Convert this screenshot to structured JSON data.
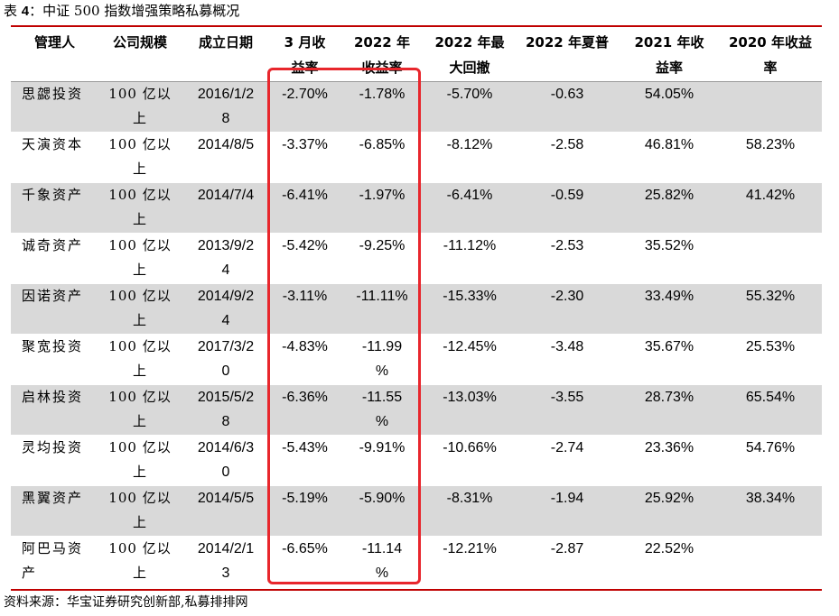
{
  "caption": {
    "prefix": "表",
    "number": "4",
    "text": "：中证 500 指数增强策略私募概况"
  },
  "columns": [
    [
      "管理人"
    ],
    [
      "公司规模"
    ],
    [
      "成立日期"
    ],
    [
      "3 月收",
      "益率"
    ],
    [
      "2022 年",
      "收益率"
    ],
    [
      "2022 年最",
      "大回撤"
    ],
    [
      "2022 年夏普"
    ],
    [
      "2021 年收",
      "益率"
    ],
    [
      "2020 年收益",
      "率"
    ]
  ],
  "rows": [
    {
      "manager": "思勰投资",
      "scale": [
        "100 亿以",
        "上"
      ],
      "date": [
        "2016/1/2",
        "8"
      ],
      "mar": "-2.70%",
      "ret2022": [
        "-1.78%"
      ],
      "dd2022": "-5.70%",
      "sharpe2022": "-0.63",
      "ret2021": "54.05%",
      "ret2020": ""
    },
    {
      "manager": "天演资本",
      "scale": [
        "100 亿以",
        "上"
      ],
      "date": [
        "2014/8/5"
      ],
      "mar": "-3.37%",
      "ret2022": [
        "-6.85%"
      ],
      "dd2022": "-8.12%",
      "sharpe2022": "-2.58",
      "ret2021": "46.81%",
      "ret2020": "58.23%"
    },
    {
      "manager": "千象资产",
      "scale": [
        "100 亿以",
        "上"
      ],
      "date": [
        "2014/7/4"
      ],
      "mar": "-6.41%",
      "ret2022": [
        "-1.97%"
      ],
      "dd2022": "-6.41%",
      "sharpe2022": "-0.59",
      "ret2021": "25.82%",
      "ret2020": "41.42%"
    },
    {
      "manager": "诚奇资产",
      "scale": [
        "100 亿以",
        "上"
      ],
      "date": [
        "2013/9/2",
        "4"
      ],
      "mar": "-5.42%",
      "ret2022": [
        "-9.25%"
      ],
      "dd2022": "-11.12%",
      "sharpe2022": "-2.53",
      "ret2021": "35.52%",
      "ret2020": ""
    },
    {
      "manager": "因诺资产",
      "scale": [
        "100 亿以",
        "上"
      ],
      "date": [
        "2014/9/2",
        "4"
      ],
      "mar": "-3.11%",
      "ret2022": [
        "-11.11%"
      ],
      "dd2022": "-15.33%",
      "sharpe2022": "-2.30",
      "ret2021": "33.49%",
      "ret2020": "55.32%"
    },
    {
      "manager": "聚宽投资",
      "scale": [
        "100 亿以",
        "上"
      ],
      "date": [
        "2017/3/2",
        "0"
      ],
      "mar": "-4.83%",
      "ret2022": [
        "-11.99",
        "%"
      ],
      "dd2022": "-12.45%",
      "sharpe2022": "-3.48",
      "ret2021": "35.67%",
      "ret2020": "25.53%"
    },
    {
      "manager": "启林投资",
      "scale": [
        "100 亿以",
        "上"
      ],
      "date": [
        "2015/5/2",
        "8"
      ],
      "mar": "-6.36%",
      "ret2022": [
        "-11.55",
        "%"
      ],
      "dd2022": "-13.03%",
      "sharpe2022": "-3.55",
      "ret2021": "28.73%",
      "ret2020": "65.54%"
    },
    {
      "manager": "灵均投资",
      "scale": [
        "100 亿以",
        "上"
      ],
      "date": [
        "2014/6/3",
        "0"
      ],
      "mar": "-5.43%",
      "ret2022": [
        "-9.91%"
      ],
      "dd2022": "-10.66%",
      "sharpe2022": "-2.74",
      "ret2021": "23.36%",
      "ret2020": "54.76%"
    },
    {
      "manager": "黑翼资产",
      "scale": [
        "100 亿以",
        "上"
      ],
      "date": [
        "2014/5/5"
      ],
      "mar": "-5.19%",
      "ret2022": [
        "-5.90%"
      ],
      "dd2022": "-8.31%",
      "sharpe2022": "-1.94",
      "ret2021": "25.92%",
      "ret2020": "38.34%"
    },
    {
      "manager": "阿巴马资",
      "manager2": "产",
      "scale": [
        "100 亿以",
        "上"
      ],
      "date": [
        "2014/2/1",
        "3"
      ],
      "mar": "-6.65%",
      "ret2022": [
        "-11.14",
        "%"
      ],
      "dd2022": "-12.21%",
      "sharpe2022": "-2.87",
      "ret2021": "22.52%",
      "ret2020": ""
    }
  ],
  "source": "资料来源：华宝证券研究创新部,私募排排网",
  "colors": {
    "rule": "#c00000",
    "shade": "#d9d9d9",
    "highlight": "#e8262c"
  }
}
